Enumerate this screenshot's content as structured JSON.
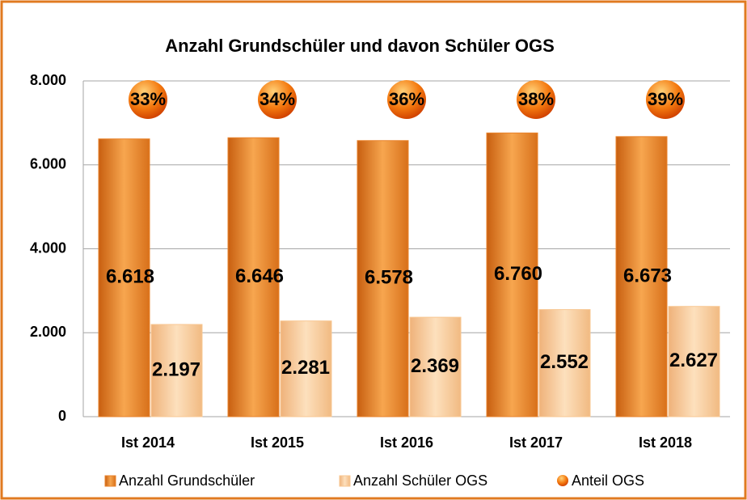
{
  "chart_data": {
    "type": "bar",
    "title": "Anzahl Grundschüler und davon Schüler OGS",
    "categories": [
      "Ist 2014",
      "Ist 2015",
      "Ist 2016",
      "Ist 2017",
      "Ist 2018"
    ],
    "series": [
      {
        "name": "Anzahl Grundschüler",
        "color": "#e9822a",
        "values": [
          6618,
          6646,
          6578,
          6760,
          6673
        ],
        "value_labels": [
          "6.618",
          "6.646",
          "6.578",
          "6.760",
          "6.673"
        ]
      },
      {
        "name": "Anzahl Schüler OGS",
        "color": "#f8c792",
        "values": [
          2197,
          2281,
          2369,
          2552,
          2627
        ],
        "value_labels": [
          "2.197",
          "2.281",
          "2.369",
          "2.552",
          "2.627"
        ]
      },
      {
        "name": "Anteil OGS",
        "color": "#f26a0c",
        "type": "circle",
        "values": [
          33,
          34,
          36,
          38,
          39
        ],
        "value_labels": [
          "33%",
          "34%",
          "36%",
          "38%",
          "39%"
        ]
      }
    ],
    "ylim": [
      0,
      8000
    ],
    "yticks": [
      0,
      {
        "value": 2000,
        "label": "2.000"
      },
      {
        "value": 4000,
        "label": "4.000"
      },
      {
        "value": 6000,
        "label": "6.000"
      },
      {
        "value": 8000,
        "label": "8.000"
      }
    ],
    "grid": true
  }
}
